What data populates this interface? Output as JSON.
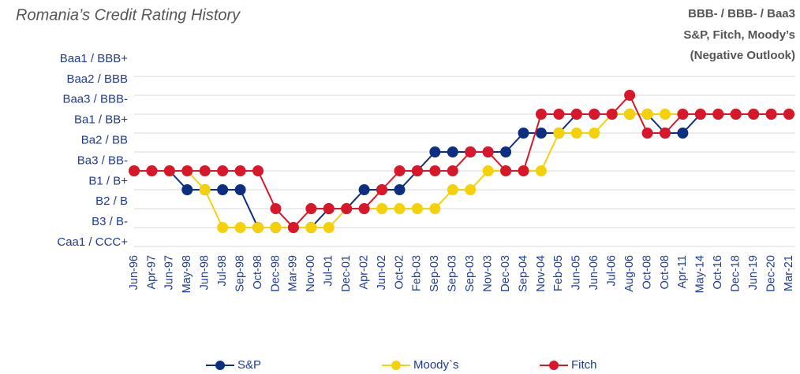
{
  "chart_data": {
    "type": "line",
    "title": "Romania’s Credit Rating History",
    "subtitle": [
      "BBB- / BBB- / Baa3",
      "S&P, Fitch, Moody’s",
      "(Negative Outlook)"
    ],
    "categories": [
      "Jun-96",
      "Apr-97",
      "Jun-97",
      "May-98",
      "Jun-98",
      "Jul-98",
      "Sep-98",
      "Oct-98",
      "Dec-98",
      "Mar-99",
      "Nov-00",
      "Jul-01",
      "Dec-01",
      "Apr-02",
      "Jun-02",
      "Oct-02",
      "Feb-03",
      "Sep-03",
      "Sep-03",
      "Sep-03",
      "Nov-03",
      "Dec-03",
      "Sep-04",
      "Nov-04",
      "Feb-05",
      "Jun-05",
      "Jun-06",
      "Jul-06",
      "Aug-06",
      "Oct-08",
      "Oct-08",
      "Apr-11",
      "May-14",
      "Oct-16",
      "Dec-18",
      "Jun-19",
      "Dec-20",
      "Mar-21"
    ],
    "ylim": [
      0,
      9
    ],
    "yticks": [
      {
        "value": 0,
        "label": "Caa1 / CCC+"
      },
      {
        "value": 1,
        "label": "B3 / B-"
      },
      {
        "value": 2,
        "label": "B2 / B"
      },
      {
        "value": 3,
        "label": "B1 / B+"
      },
      {
        "value": 4,
        "label": "Ba3 / BB-"
      },
      {
        "value": 5,
        "label": "Ba2 / BB"
      },
      {
        "value": 6,
        "label": "Ba1 / BB+"
      },
      {
        "value": 7,
        "label": "Baa3 / BBB-"
      },
      {
        "value": 8,
        "label": "Baa2 / BBB"
      },
      {
        "value": 9,
        "label": "Baa1 / BBB+"
      }
    ],
    "grid": true,
    "legend": "bottom",
    "series": [
      {
        "name": "S&P",
        "color": "#0d2f80",
        "values": [
          4,
          4,
          4,
          3,
          3,
          3,
          3,
          1,
          1,
          1,
          1,
          2,
          2,
          3,
          3,
          3,
          4,
          5,
          5,
          5,
          5,
          5,
          6,
          6,
          6,
          7,
          7,
          7,
          7,
          7,
          6,
          6,
          7,
          7,
          7,
          7,
          7,
          7
        ]
      },
      {
        "name": "Moody`s",
        "color": "#f5d10b",
        "values": [
          4,
          4,
          4,
          4,
          3,
          1,
          1,
          1,
          1,
          1,
          1,
          1,
          2,
          2,
          2,
          2,
          2,
          2,
          3,
          3,
          4,
          4,
          4,
          4,
          6,
          6,
          6,
          7,
          7,
          7,
          7,
          7,
          7,
          7,
          7,
          7,
          7,
          7
        ]
      },
      {
        "name": "Fitch",
        "color": "#d7182a",
        "values": [
          4,
          4,
          4,
          4,
          4,
          4,
          4,
          4,
          2,
          1,
          2,
          2,
          2,
          2,
          3,
          4,
          4,
          4,
          4,
          5,
          5,
          4,
          4,
          7,
          7,
          7,
          7,
          7,
          8,
          6,
          6,
          7,
          7,
          7,
          7,
          7,
          7,
          7
        ]
      }
    ]
  }
}
